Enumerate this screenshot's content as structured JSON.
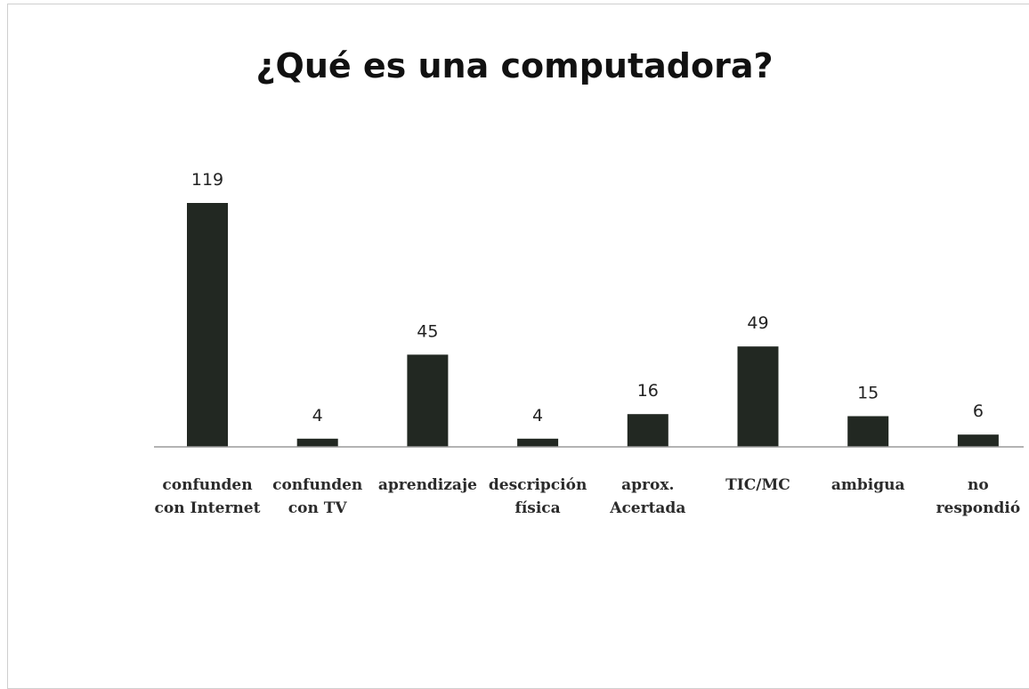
{
  "chart_data": {
    "type": "bar",
    "title": "¿Qué es una computadora?",
    "categories": [
      [
        "confunden",
        "con Internet"
      ],
      [
        "confunden",
        "con TV"
      ],
      [
        "aprendizaje"
      ],
      [
        "descripción",
        "física"
      ],
      [
        "aprox.",
        "Acertada"
      ],
      [
        "TIC/MC"
      ],
      [
        "ambigua"
      ],
      [
        "no",
        "respondió"
      ]
    ],
    "values": [
      119,
      4,
      45,
      4,
      16,
      49,
      15,
      6
    ],
    "xlabel": "",
    "ylabel": "",
    "ylim": [
      0,
      119
    ],
    "grid": false,
    "legend": "none",
    "bar_color": "#222822",
    "axis_color": "#9a9a9a"
  }
}
